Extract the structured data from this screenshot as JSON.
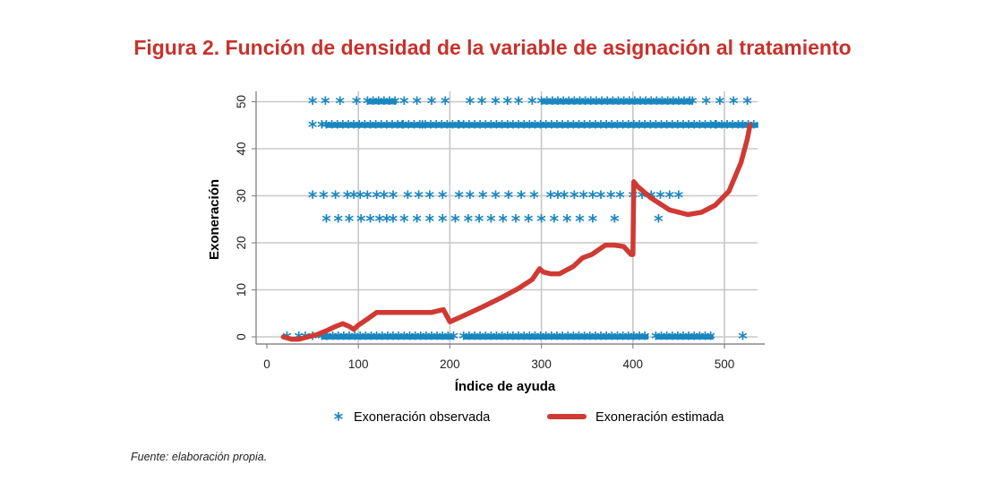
{
  "figure_title": "Figura 2. Función de densidad de la variable de asignación al tratamiento",
  "source_note": "Fuente: elaboración propia.",
  "colors": {
    "title": "#c8312b",
    "observed": "#1a86c0",
    "estimated": "#cf3a33",
    "grid": "#c8c8c8",
    "axis": "#888888"
  },
  "chart_data": {
    "type": "scatter",
    "title": "Figura 2. Función de densidad de la variable de asignación al tratamiento",
    "xlabel": "Índice de ayuda",
    "ylabel": "Exoneración",
    "xlim": [
      0,
      530
    ],
    "ylim": [
      -1,
      51
    ],
    "x_ticks": [
      0,
      100,
      200,
      300,
      400,
      500
    ],
    "y_ticks": [
      0,
      10,
      20,
      30,
      40,
      50
    ],
    "grid": true,
    "legend_position": "bottom",
    "series": [
      {
        "name": "Exoneración observada",
        "marker": "asterisk",
        "points": [
          [
            22,
            0
          ],
          [
            35,
            0
          ],
          [
            42,
            0
          ],
          [
            50,
            0
          ],
          [
            65,
            0
          ],
          [
            520,
            0
          ],
          [
            50,
            50
          ],
          [
            64,
            50
          ],
          [
            80,
            50
          ],
          [
            98,
            50
          ],
          [
            150,
            50
          ],
          [
            164,
            50
          ],
          [
            180,
            50
          ],
          [
            195,
            50
          ],
          [
            222,
            50
          ],
          [
            235,
            50
          ],
          [
            250,
            50
          ],
          [
            263,
            50
          ],
          [
            275,
            50
          ],
          [
            290,
            50
          ],
          [
            465,
            50
          ],
          [
            480,
            50
          ],
          [
            495,
            50
          ],
          [
            510,
            50
          ],
          [
            525,
            50
          ],
          [
            50,
            45
          ],
          [
            60,
            45
          ],
          [
            148,
            45
          ],
          [
            170,
            45
          ],
          [
            210,
            45
          ],
          [
            490,
            45
          ],
          [
            50,
            30
          ],
          [
            62,
            30
          ],
          [
            75,
            30
          ],
          [
            88,
            30
          ],
          [
            95,
            30
          ],
          [
            102,
            30
          ],
          [
            110,
            30
          ],
          [
            120,
            30
          ],
          [
            128,
            30
          ],
          [
            138,
            30
          ],
          [
            154,
            30
          ],
          [
            166,
            30
          ],
          [
            178,
            30
          ],
          [
            192,
            30
          ],
          [
            210,
            30
          ],
          [
            222,
            30
          ],
          [
            236,
            30
          ],
          [
            250,
            30
          ],
          [
            264,
            30
          ],
          [
            278,
            30
          ],
          [
            292,
            30
          ],
          [
            310,
            30
          ],
          [
            318,
            30
          ],
          [
            325,
            30
          ],
          [
            336,
            30
          ],
          [
            346,
            30
          ],
          [
            356,
            30
          ],
          [
            365,
            30
          ],
          [
            376,
            30
          ],
          [
            386,
            30
          ],
          [
            400,
            30
          ],
          [
            410,
            30
          ],
          [
            420,
            30
          ],
          [
            430,
            30
          ],
          [
            440,
            30
          ],
          [
            450,
            30
          ],
          [
            65,
            25
          ],
          [
            78,
            25
          ],
          [
            90,
            25
          ],
          [
            103,
            25
          ],
          [
            113,
            25
          ],
          [
            123,
            25
          ],
          [
            131,
            25
          ],
          [
            138,
            25
          ],
          [
            150,
            25
          ],
          [
            164,
            25
          ],
          [
            178,
            25
          ],
          [
            192,
            25
          ],
          [
            206,
            25
          ],
          [
            220,
            25
          ],
          [
            232,
            25
          ],
          [
            245,
            25
          ],
          [
            258,
            25
          ],
          [
            272,
            25
          ],
          [
            286,
            25
          ],
          [
            300,
            25
          ],
          [
            314,
            25
          ],
          [
            328,
            25
          ],
          [
            342,
            25
          ],
          [
            356,
            25
          ],
          [
            380,
            25
          ],
          [
            428,
            25
          ]
        ],
        "dense_segments": [
          {
            "y": 0,
            "x_range": [
              60,
              205
            ]
          },
          {
            "y": 0,
            "x_range": [
              215,
              417
            ]
          },
          {
            "y": 0,
            "x_range": [
              425,
              488
            ]
          },
          {
            "y": 45,
            "x_range": [
              65,
              520
            ]
          },
          {
            "y": 45,
            "x_range": [
              520,
              537
            ]
          },
          {
            "y": 50,
            "x_range": [
              110,
              142
            ]
          },
          {
            "y": 50,
            "x_range": [
              300,
              465
            ]
          }
        ]
      },
      {
        "name": "Exoneración estimada",
        "type": "line",
        "points": [
          [
            18,
            0
          ],
          [
            27,
            -0.5
          ],
          [
            35,
            -0.5
          ],
          [
            45,
            0
          ],
          [
            55,
            0.5
          ],
          [
            65,
            1.3
          ],
          [
            75,
            2.2
          ],
          [
            83,
            2.8
          ],
          [
            90,
            2.2
          ],
          [
            95,
            1.6
          ],
          [
            100,
            2.5
          ],
          [
            110,
            3.8
          ],
          [
            120,
            5.2
          ],
          [
            140,
            5.2
          ],
          [
            160,
            5.2
          ],
          [
            180,
            5.2
          ],
          [
            193,
            5.8
          ],
          [
            200,
            3.2
          ],
          [
            215,
            4.5
          ],
          [
            235,
            6.3
          ],
          [
            255,
            8.2
          ],
          [
            275,
            10.3
          ],
          [
            290,
            12.2
          ],
          [
            298,
            14.5
          ],
          [
            302,
            13.8
          ],
          [
            310,
            13.4
          ],
          [
            320,
            13.4
          ],
          [
            335,
            15
          ],
          [
            345,
            16.8
          ],
          [
            355,
            17.5
          ],
          [
            370,
            19.5
          ],
          [
            380,
            19.5
          ],
          [
            390,
            19.2
          ],
          [
            398,
            17.5
          ],
          [
            400,
            17.5
          ],
          [
            401,
            33
          ],
          [
            405,
            32
          ],
          [
            420,
            29.5
          ],
          [
            440,
            27
          ],
          [
            460,
            26
          ],
          [
            475,
            26.5
          ],
          [
            490,
            28
          ],
          [
            505,
            31
          ],
          [
            518,
            37
          ],
          [
            525,
            42
          ],
          [
            528,
            45
          ]
        ]
      }
    ]
  }
}
